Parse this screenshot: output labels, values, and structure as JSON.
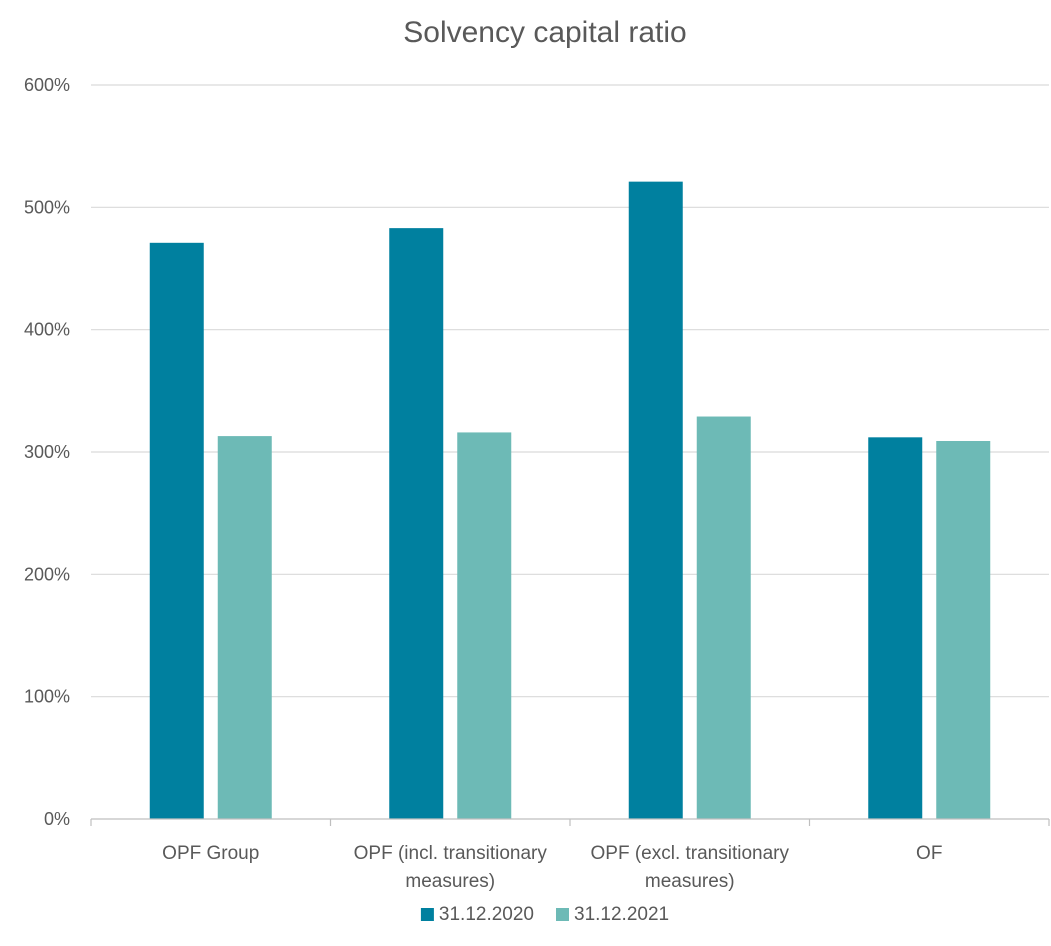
{
  "chart_data": {
    "type": "bar",
    "title": "Solvency capital ratio",
    "categories": [
      [
        "OPF Group"
      ],
      [
        "OPF (incl. transitionary",
        "measures)"
      ],
      [
        "OPF (excl. transitionary",
        "measures)"
      ],
      [
        "OF"
      ]
    ],
    "series": [
      {
        "name": "31.12.2020",
        "color": "#00809f",
        "values": [
          471,
          483,
          521,
          312
        ]
      },
      {
        "name": "31.12.2021",
        "color": "#6dbab6",
        "values": [
          313,
          316,
          329,
          309
        ]
      }
    ],
    "ylim": [
      0,
      600
    ],
    "yticks": [
      0,
      100,
      200,
      300,
      400,
      500,
      600
    ],
    "ytick_labels": [
      "0%",
      "100%",
      "200%",
      "300%",
      "400%",
      "500%",
      "600%"
    ],
    "grid": true,
    "legend_position": "bottom"
  }
}
